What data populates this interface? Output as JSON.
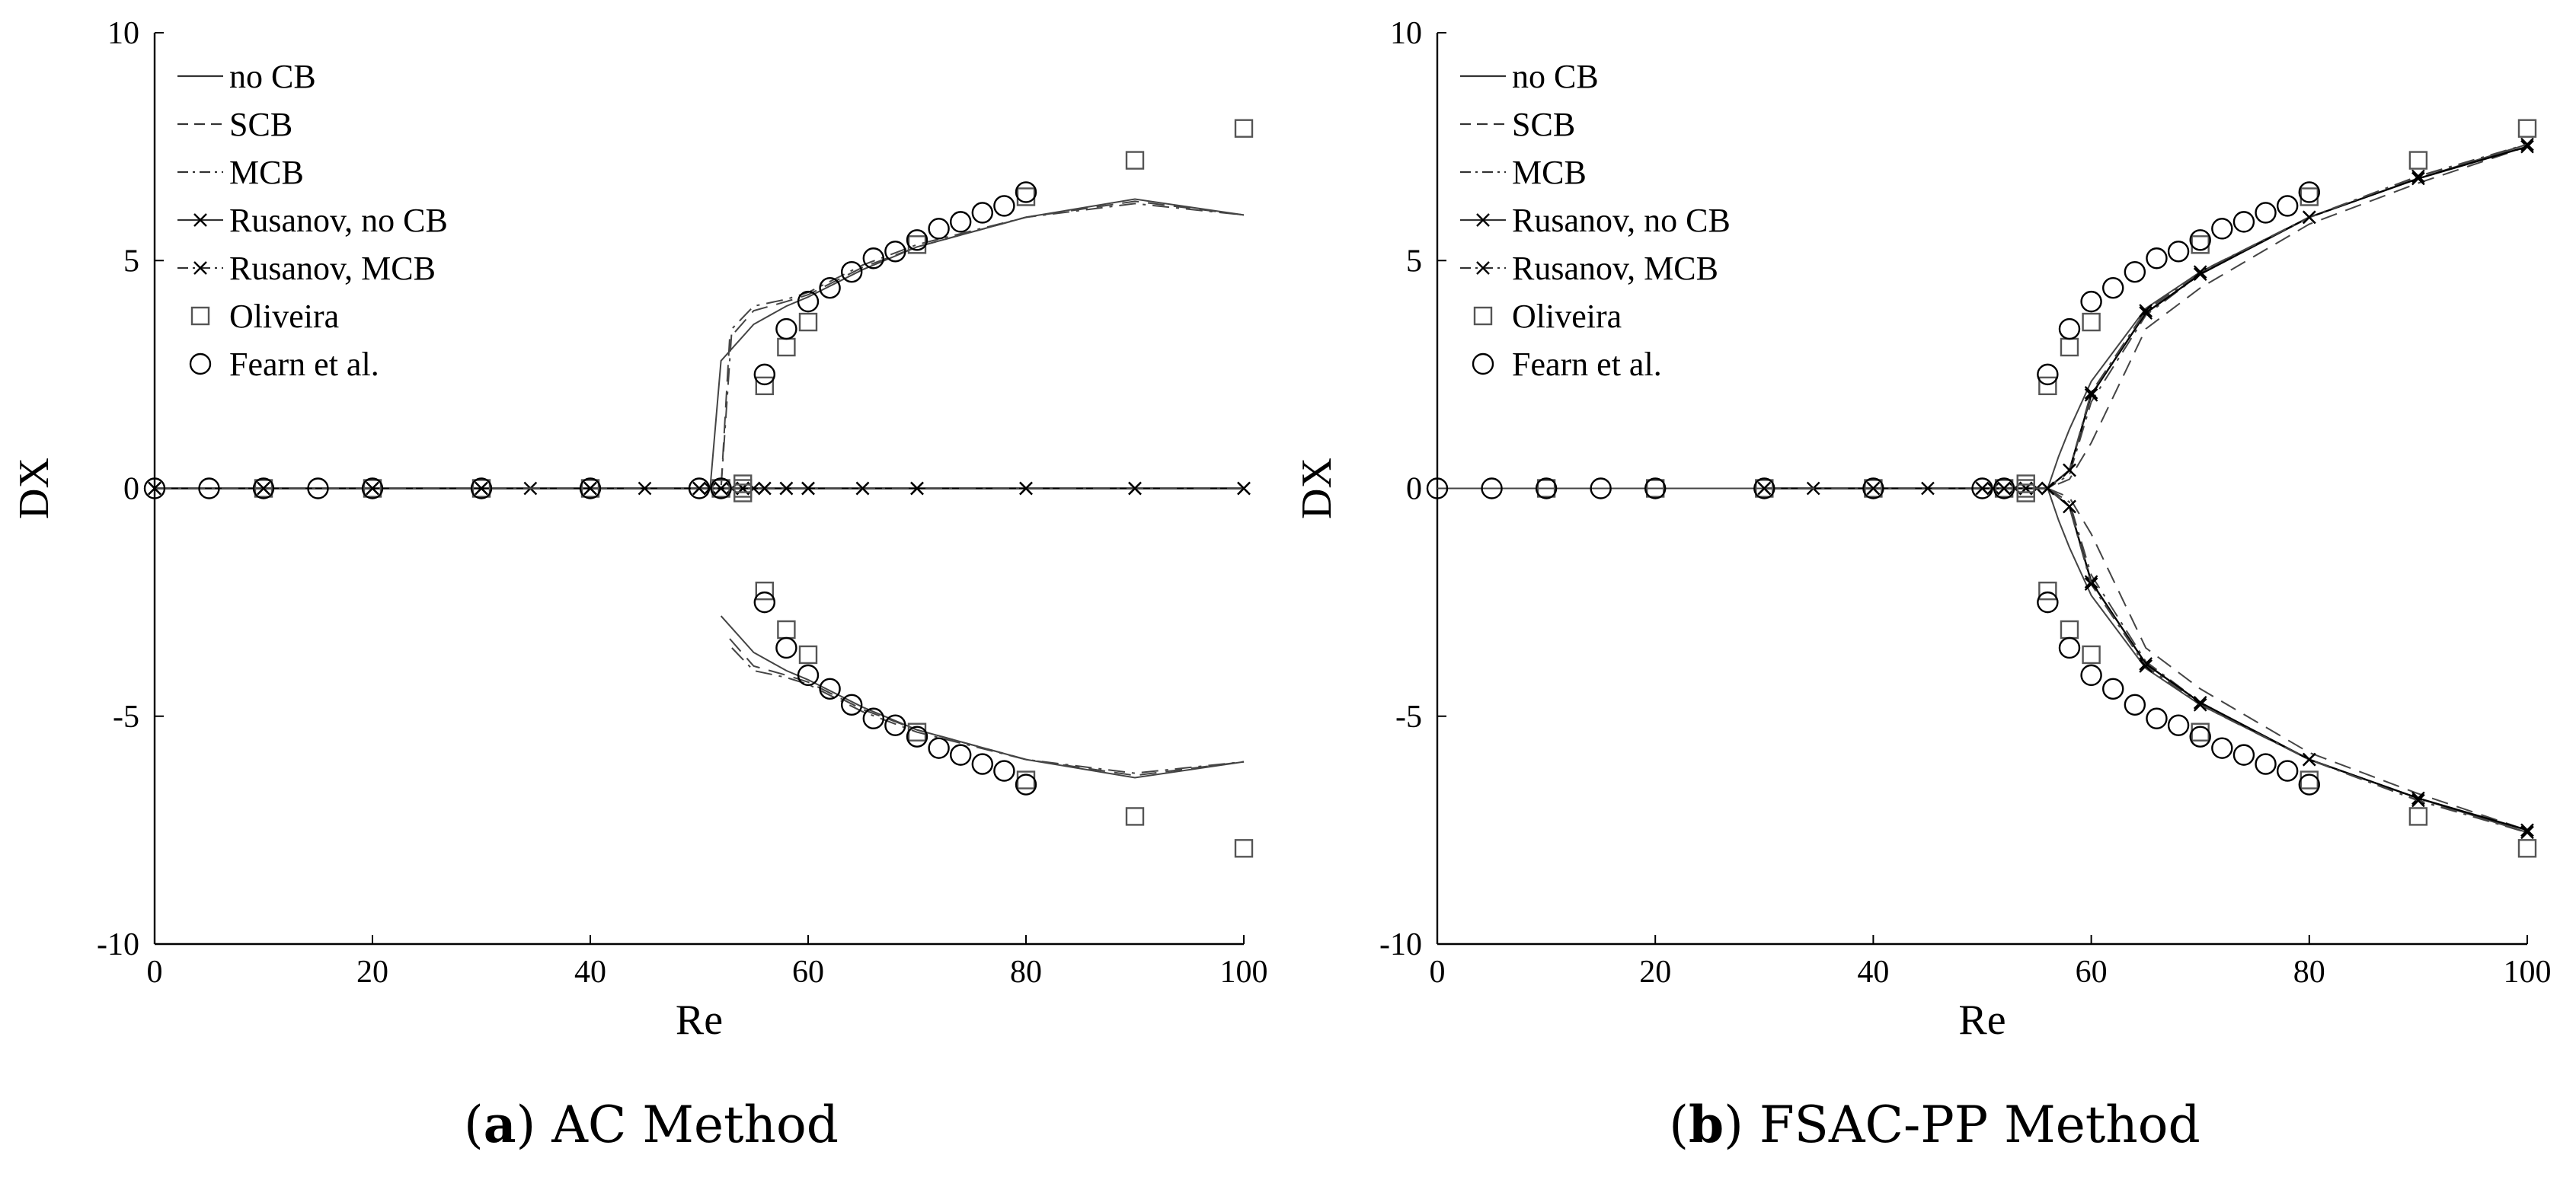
{
  "captions": [
    {
      "letter": "a",
      "text": "AC Method"
    },
    {
      "letter": "b",
      "text": "FSAC-PP Method"
    }
  ],
  "chart_data": [
    {
      "type": "line",
      "panel": "a",
      "caption": "(a) AC Method",
      "xlabel": "Re",
      "ylabel": "DX",
      "xlim": [
        0,
        100
      ],
      "ylim": [
        -10,
        10
      ],
      "xticks": [
        "0",
        "20",
        "40",
        "60",
        "80",
        "100"
      ],
      "yticks": [
        "-10",
        "-5",
        "0",
        "5",
        "10"
      ],
      "legend_position": "top-left",
      "grid": false,
      "series": [
        {
          "name": "no CB",
          "style": "solid",
          "marker": "none",
          "branches": [
            {
              "x": [
                0,
                10,
                20,
                30,
                40,
                50,
                51,
                52,
                55,
                58,
                60,
                65,
                70,
                80,
                90,
                100
              ],
              "y": [
                0,
                0,
                0,
                0,
                0,
                0,
                0,
                2.8,
                3.6,
                4.0,
                4.2,
                4.8,
                5.3,
                5.95,
                6.35,
                6.0
              ]
            },
            {
              "x": [
                52,
                55,
                58,
                60,
                65,
                70,
                80,
                90,
                100
              ],
              "y": [
                -2.8,
                -3.6,
                -4.0,
                -4.2,
                -4.8,
                -5.3,
                -5.95,
                -6.35,
                -6.0
              ]
            },
            {
              "x": [
                52,
                60,
                70,
                80,
                90,
                100
              ],
              "y": [
                0,
                0,
                0,
                0,
                0,
                0
              ]
            }
          ]
        },
        {
          "name": "SCB",
          "style": "dashed",
          "marker": "none",
          "branches": [
            {
              "x": [
                0,
                10,
                20,
                30,
                40,
                50,
                52,
                52.8,
                55,
                58,
                60,
                65,
                70,
                80,
                90,
                100
              ],
              "y": [
                0,
                0,
                0,
                0,
                0,
                0,
                0,
                3.3,
                3.9,
                4.1,
                4.25,
                4.85,
                5.3,
                5.95,
                6.3,
                6.0
              ]
            },
            {
              "x": [
                52.8,
                55,
                58,
                60,
                65,
                70,
                80,
                90,
                100
              ],
              "y": [
                -3.3,
                -3.9,
                -4.1,
                -4.25,
                -4.85,
                -5.3,
                -5.95,
                -6.3,
                -6.0
              ]
            }
          ]
        },
        {
          "name": "MCB",
          "style": "dashdot",
          "marker": "none",
          "branches": [
            {
              "x": [
                0,
                10,
                20,
                30,
                40,
                50,
                52,
                53,
                55,
                58,
                60,
                65,
                70,
                80,
                90,
                100
              ],
              "y": [
                0,
                0,
                0,
                0,
                0,
                0,
                0,
                3.5,
                4.0,
                4.15,
                4.3,
                4.9,
                5.35,
                5.95,
                6.25,
                6.0
              ]
            },
            {
              "x": [
                53,
                55,
                58,
                60,
                65,
                70,
                80,
                90,
                100
              ],
              "y": [
                -3.5,
                -4.0,
                -4.15,
                -4.3,
                -4.9,
                -5.35,
                -5.95,
                -6.25,
                -6.0
              ]
            }
          ]
        },
        {
          "name": "Rusanov, no CB",
          "style": "solid",
          "marker": "x",
          "branches": [
            {
              "x": [
                0,
                10,
                20,
                30,
                34.5,
                40,
                45,
                50,
                51,
                52,
                53,
                54,
                55,
                56,
                58,
                60,
                65,
                70,
                80,
                90,
                100
              ],
              "y": [
                0,
                0,
                0,
                0,
                0,
                0,
                0,
                0,
                0,
                0,
                0,
                0,
                0,
                0,
                0,
                0,
                0,
                0,
                0,
                0,
                0
              ]
            }
          ]
        },
        {
          "name": "Rusanov, MCB",
          "style": "dashdot",
          "marker": "x",
          "branches": [
            {
              "x": [
                0,
                10,
                20,
                30,
                40,
                50,
                52,
                54,
                56,
                58,
                60,
                65,
                70,
                80,
                90,
                100
              ],
              "y": [
                0,
                0,
                0,
                0,
                0,
                0,
                0,
                0,
                0,
                0,
                0,
                0,
                0,
                0,
                0,
                0
              ]
            }
          ]
        },
        {
          "name": "Oliveira",
          "style": "none",
          "marker": "square",
          "points": {
            "x": [
              10,
              20,
              30,
              40,
              52,
              54,
              54,
              54,
              56,
              56,
              58,
              58,
              60,
              60,
              70,
              70,
              80,
              80,
              90,
              90,
              100,
              100
            ],
            "y": [
              0,
              0,
              0,
              0,
              0,
              0.1,
              -0.1,
              0,
              2.25,
              -2.25,
              3.1,
              -3.1,
              3.65,
              -3.65,
              5.35,
              -5.35,
              6.4,
              -6.4,
              7.2,
              -7.2,
              7.9,
              -7.9
            ]
          }
        },
        {
          "name": "Fearn et al.",
          "style": "none",
          "marker": "circle",
          "points": {
            "x": [
              0,
              5,
              10,
              15,
              20,
              30,
              40,
              50,
              52,
              56,
              56,
              58,
              58,
              60,
              60,
              62,
              62,
              64,
              64,
              66,
              66,
              68,
              68,
              70,
              70,
              72,
              72,
              74,
              74,
              76,
              76,
              78,
              78,
              80,
              80
            ],
            "y": [
              0,
              0,
              0,
              0,
              0,
              0,
              0,
              0,
              0,
              2.5,
              -2.5,
              3.5,
              -3.5,
              4.1,
              -4.1,
              4.4,
              -4.4,
              4.75,
              -4.75,
              5.05,
              -5.05,
              5.2,
              -5.2,
              5.45,
              -5.45,
              5.7,
              -5.7,
              5.85,
              -5.85,
              6.05,
              -6.05,
              6.2,
              -6.2,
              6.5,
              -6.5
            ]
          }
        }
      ]
    },
    {
      "type": "line",
      "panel": "b",
      "caption": "(b) FSAC-PP Method",
      "xlabel": "Re",
      "ylabel": "DX",
      "xlim": [
        0,
        100
      ],
      "ylim": [
        -10,
        10
      ],
      "xticks": [
        "0",
        "20",
        "40",
        "60",
        "80",
        "100"
      ],
      "yticks": [
        "-10",
        "-5",
        "0",
        "5",
        "10"
      ],
      "legend_position": "top-left",
      "grid": false,
      "series": [
        {
          "name": "no CB",
          "style": "solid",
          "marker": "none",
          "branches": [
            {
              "x": [
                0,
                30,
                40,
                50,
                54,
                56,
                57,
                58,
                60,
                65,
                70,
                80,
                90,
                100
              ],
              "y": [
                0,
                0,
                0,
                0,
                0,
                0,
                0.7,
                1.3,
                2.35,
                3.95,
                4.75,
                5.95,
                6.8,
                7.55
              ]
            },
            {
              "x": [
                56,
                57,
                58,
                60,
                65,
                70,
                80,
                90,
                100
              ],
              "y": [
                0,
                -0.7,
                -1.3,
                -2.35,
                -3.95,
                -4.75,
                -5.95,
                -6.8,
                -7.55
              ]
            }
          ]
        },
        {
          "name": "SCB",
          "style": "dashed",
          "marker": "none",
          "branches": [
            {
              "x": [
                0,
                30,
                40,
                50,
                54,
                56,
                58,
                60,
                65,
                70,
                80,
                90,
                100
              ],
              "y": [
                0,
                0,
                0,
                0,
                0,
                0,
                0.2,
                1.0,
                3.5,
                4.4,
                5.8,
                6.7,
                7.5
              ]
            },
            {
              "x": [
                56,
                58,
                60,
                65,
                70,
                80,
                90,
                100
              ],
              "y": [
                0,
                -0.2,
                -1.0,
                -3.5,
                -4.4,
                -5.8,
                -6.7,
                -7.5
              ]
            }
          ]
        },
        {
          "name": "MCB",
          "style": "dashdot",
          "marker": "none",
          "branches": [
            {
              "x": [
                0,
                30,
                40,
                50,
                54,
                56,
                58,
                60,
                65,
                70,
                80,
                90,
                100
              ],
              "y": [
                0,
                0,
                0,
                0,
                0,
                0,
                0.3,
                1.9,
                3.8,
                4.7,
                5.95,
                6.8,
                7.55
              ]
            },
            {
              "x": [
                56,
                58,
                60,
                65,
                70,
                80,
                90,
                100
              ],
              "y": [
                0,
                -0.3,
                -1.9,
                -3.8,
                -4.7,
                -5.95,
                -6.8,
                -7.55
              ]
            }
          ]
        },
        {
          "name": "Rusanov, no CB",
          "style": "solid",
          "marker": "x",
          "branches": [
            {
              "x": [
                30,
                34.5,
                40,
                45,
                50,
                51,
                52,
                53,
                54,
                55,
                56,
                58,
                60,
                65,
                70,
                80,
                90,
                100
              ],
              "y": [
                0,
                0,
                0,
                0,
                0,
                0,
                0,
                0,
                0,
                0,
                0,
                0.4,
                2.05,
                3.85,
                4.7,
                5.95,
                6.8,
                7.5
              ]
            },
            {
              "x": [
                56,
                58,
                60,
                65,
                70,
                80,
                90,
                100
              ],
              "y": [
                0,
                -0.4,
                -2.05,
                -3.85,
                -4.7,
                -5.95,
                -6.8,
                -7.5
              ]
            }
          ]
        },
        {
          "name": "Rusanov, MCB",
          "style": "dashdot",
          "marker": "x",
          "branches": [
            {
              "x": [
                30,
                40,
                50,
                52,
                54,
                56,
                58,
                60,
                65,
                70,
                80,
                90,
                100
              ],
              "y": [
                0,
                0,
                0,
                0,
                0,
                0,
                0.4,
                2.1,
                3.9,
                4.75,
                5.95,
                6.85,
                7.55
              ]
            },
            {
              "x": [
                56,
                58,
                60,
                65,
                70,
                80,
                90,
                100
              ],
              "y": [
                0,
                -0.4,
                -2.1,
                -3.9,
                -4.75,
                -5.95,
                -6.85,
                -7.55
              ]
            }
          ]
        },
        {
          "name": "Oliveira",
          "style": "none",
          "marker": "square",
          "points": {
            "x": [
              10,
              20,
              30,
              40,
              52,
              54,
              54,
              54,
              56,
              56,
              58,
              58,
              60,
              60,
              70,
              70,
              80,
              80,
              90,
              90,
              100,
              100
            ],
            "y": [
              0,
              0,
              0,
              0,
              0,
              0.1,
              -0.1,
              0,
              2.25,
              -2.25,
              3.1,
              -3.1,
              3.65,
              -3.65,
              5.35,
              -5.35,
              6.4,
              -6.4,
              7.2,
              -7.2,
              7.9,
              -7.9
            ]
          }
        },
        {
          "name": "Fearn et al.",
          "style": "none",
          "marker": "circle",
          "points": {
            "x": [
              0,
              5,
              10,
              15,
              20,
              30,
              40,
              50,
              52,
              56,
              56,
              58,
              58,
              60,
              60,
              62,
              62,
              64,
              64,
              66,
              66,
              68,
              68,
              70,
              70,
              72,
              72,
              74,
              74,
              76,
              76,
              78,
              78,
              80,
              80
            ],
            "y": [
              0,
              0,
              0,
              0,
              0,
              0,
              0,
              0,
              0,
              2.5,
              -2.5,
              3.5,
              -3.5,
              4.1,
              -4.1,
              4.4,
              -4.4,
              4.75,
              -4.75,
              5.05,
              -5.05,
              5.2,
              -5.2,
              5.45,
              -5.45,
              5.7,
              -5.7,
              5.85,
              -5.85,
              6.05,
              -6.05,
              6.2,
              -6.2,
              6.5,
              -6.5
            ]
          }
        }
      ]
    }
  ]
}
